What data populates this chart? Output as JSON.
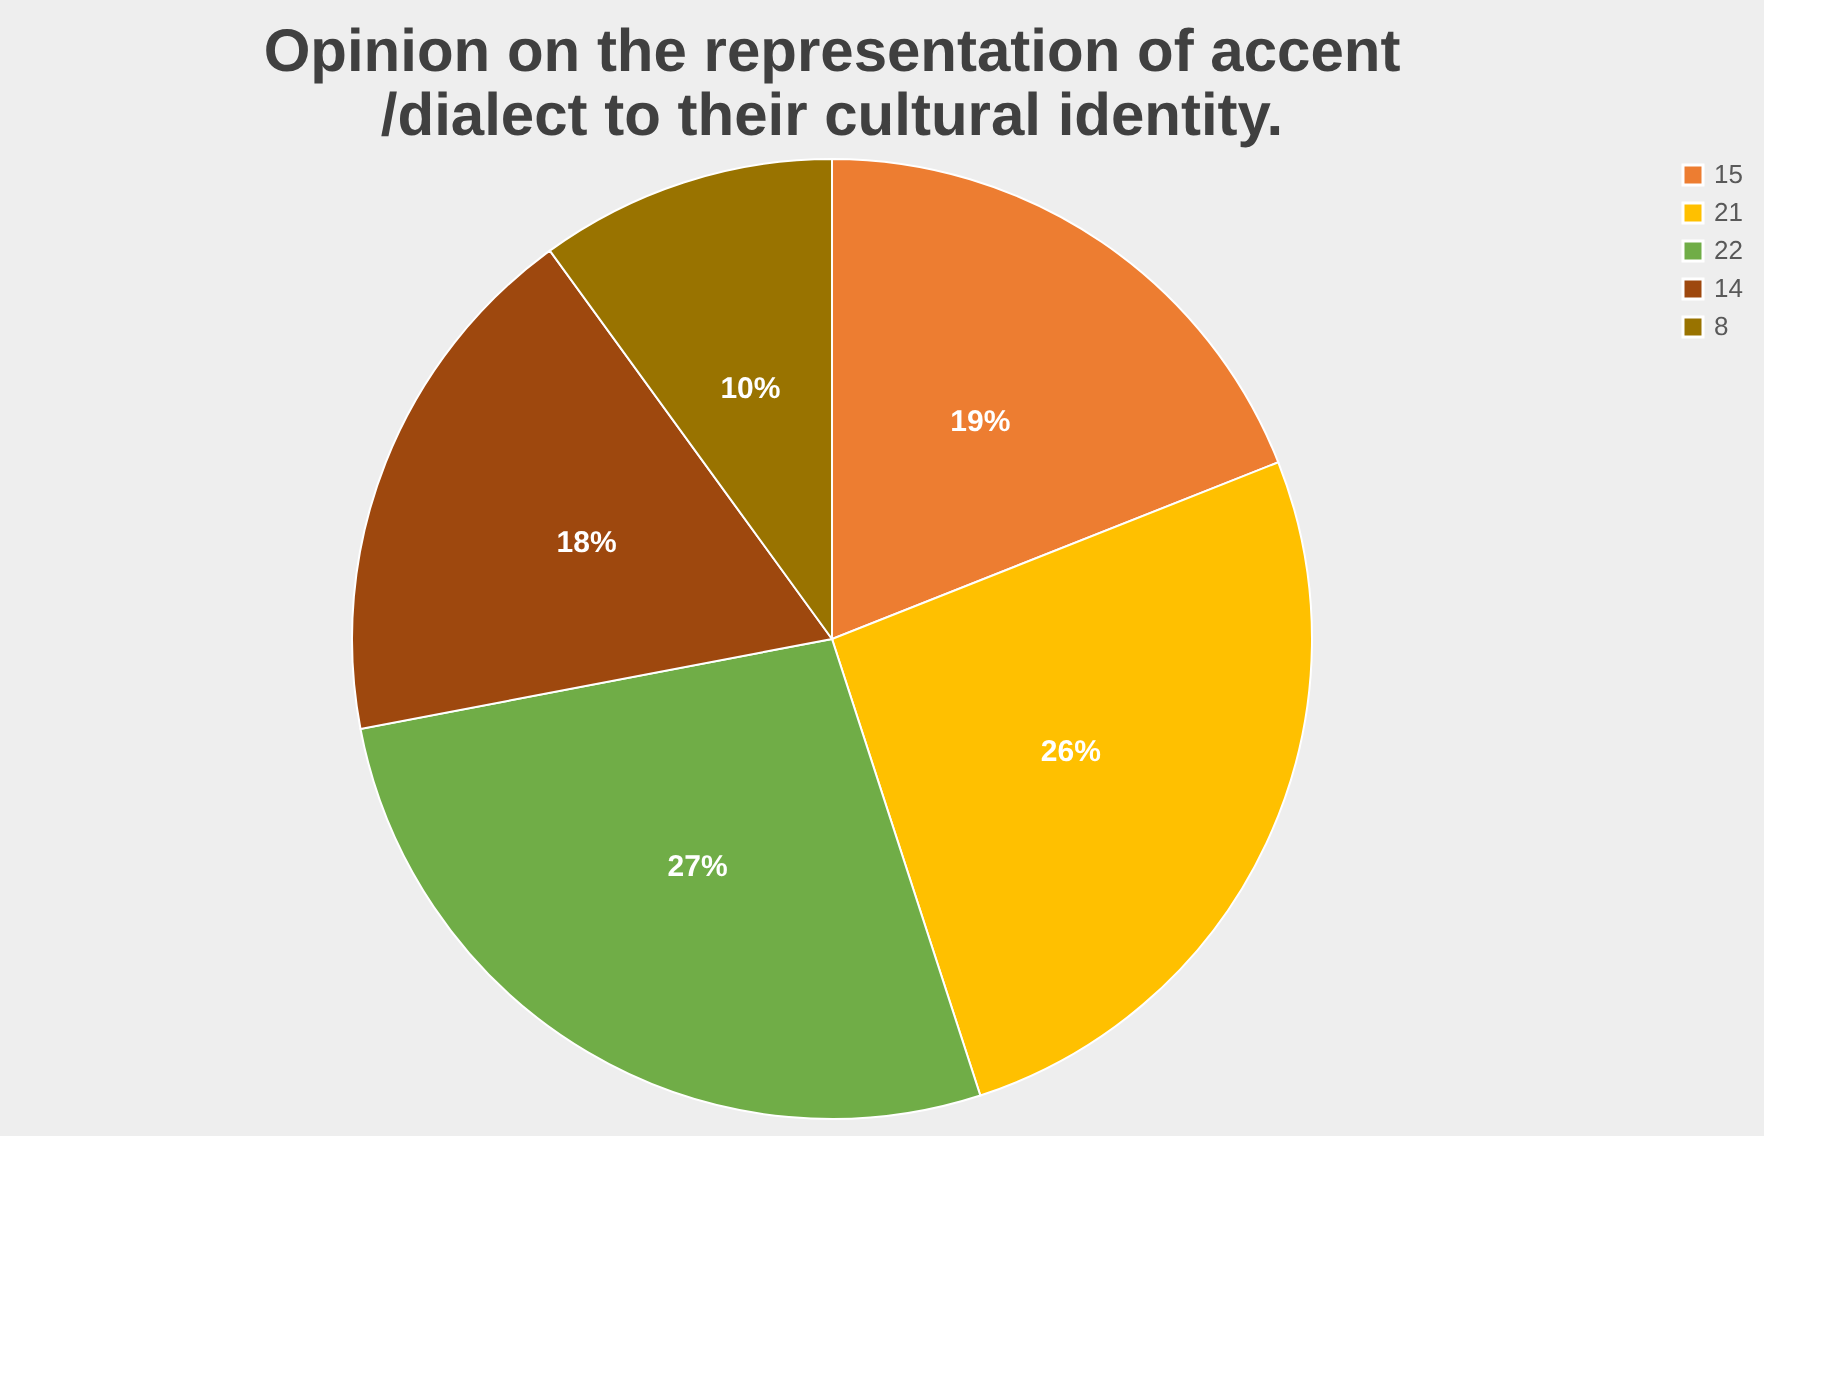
{
  "chart_data": {
    "type": "pie",
    "title": "Opinion on the representation of accent /dialect to their cultural identity.",
    "categories": [
      "15",
      "21",
      "22",
      "14",
      "8"
    ],
    "values": [
      19,
      26,
      27,
      18,
      10
    ],
    "colors": [
      "#ed7d31",
      "#ffc000",
      "#70ad47",
      "#9e480e",
      "#997300"
    ],
    "value_labels": [
      "19%",
      "26%",
      "27%",
      "18%",
      "10%"
    ],
    "legend": "right"
  }
}
